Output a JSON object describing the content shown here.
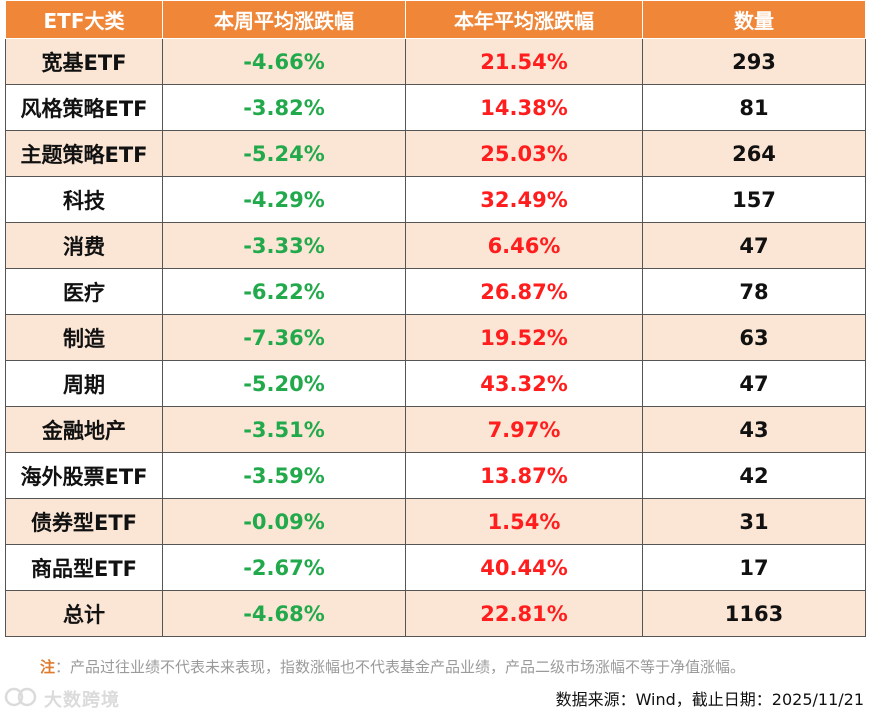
{
  "table": {
    "headers": [
      "ETF大类",
      "本周平均涨跌幅",
      "本年平均涨跌幅",
      "数量"
    ],
    "rows": [
      {
        "category": "宽基ETF",
        "week": "-4.66%",
        "year": "21.54%",
        "count": "293"
      },
      {
        "category": "风格策略ETF",
        "week": "-3.82%",
        "year": "14.38%",
        "count": "81"
      },
      {
        "category": "主题策略ETF",
        "week": "-5.24%",
        "year": "25.03%",
        "count": "264"
      },
      {
        "category": "科技",
        "week": "-4.29%",
        "year": "32.49%",
        "count": "157"
      },
      {
        "category": "消费",
        "week": "-3.33%",
        "year": "6.46%",
        "count": "47"
      },
      {
        "category": "医疗",
        "week": "-6.22%",
        "year": "26.87%",
        "count": "78"
      },
      {
        "category": "制造",
        "week": "-7.36%",
        "year": "19.52%",
        "count": "63"
      },
      {
        "category": "周期",
        "week": "-5.20%",
        "year": "43.32%",
        "count": "47"
      },
      {
        "category": "金融地产",
        "week": "-3.51%",
        "year": "7.97%",
        "count": "43"
      },
      {
        "category": "海外股票ETF",
        "week": "-3.59%",
        "year": "13.87%",
        "count": "42"
      },
      {
        "category": "债券型ETF",
        "week": "-0.09%",
        "year": "1.54%",
        "count": "31"
      },
      {
        "category": "商品型ETF",
        "week": "-2.67%",
        "year": "40.44%",
        "count": "17"
      },
      {
        "category": "总计",
        "week": "-4.68%",
        "year": "22.81%",
        "count": "1163"
      }
    ]
  },
  "note": {
    "label": "注",
    "text": "：产品过往业绩不代表未来表现，指数涨幅也不代表基金产品业绩，产品二级市场涨幅不等于净值涨幅。"
  },
  "source": "数据来源：Wind，截止日期：2025/11/21",
  "watermark": {
    "text": "大数跨境",
    "icon": "logo-icon"
  },
  "colors": {
    "header_bg": "#ef8638",
    "row_tint": "#fbe6d6",
    "negative_green": "#22a94b",
    "positive_red": "#ff1d1d"
  }
}
